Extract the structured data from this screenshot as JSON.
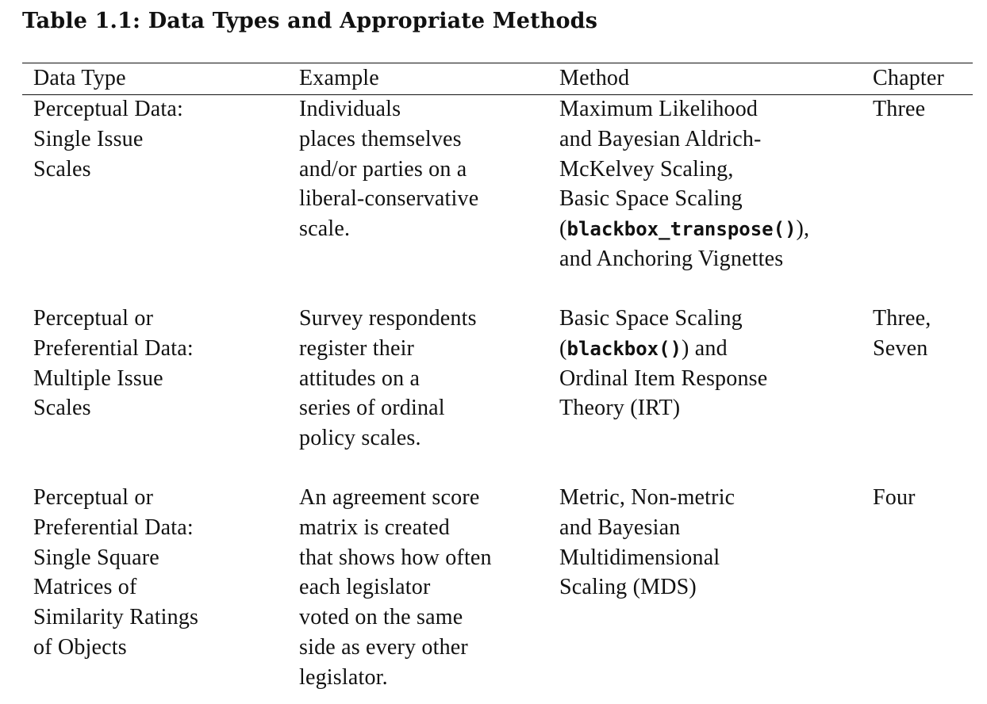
{
  "caption": "Table 1.1: Data Types and Appropriate Methods",
  "headers": {
    "data_type": "Data Type",
    "example": "Example",
    "method": "Method",
    "chapter": "Chapter"
  },
  "rows": [
    {
      "data_type": [
        "Perceptual Data:",
        "Single Issue",
        "Scales"
      ],
      "example": [
        "Individuals",
        "places themselves",
        "and/or parties on a",
        "liberal-conservative",
        "scale."
      ],
      "method": {
        "l1": "Maximum Likelihood",
        "l2": "and Bayesian Aldrich-",
        "l3": "McKelvey Scaling,",
        "l4": "Basic Space Scaling",
        "l5_open": "(",
        "l5_code": "blackbox_transpose()",
        "l5_close": "),",
        "l6": "and Anchoring Vignettes"
      },
      "chapter": [
        "Three"
      ]
    },
    {
      "data_type": [
        "Perceptual or",
        "Preferential Data:",
        "Multiple Issue",
        "Scales"
      ],
      "example": [
        "Survey respondents",
        "register their",
        "attitudes on a",
        "series of ordinal",
        "policy scales."
      ],
      "method": {
        "l1": "Basic Space Scaling",
        "l2_open": "(",
        "l2_code": "blackbox()",
        "l2_close": ") and",
        "l3": "Ordinal Item Response",
        "l4": "Theory (IRT)"
      },
      "chapter": [
        "Three,",
        "Seven"
      ]
    },
    {
      "data_type": [
        "Perceptual or",
        "Preferential Data:",
        "Single Square",
        "Matrices of",
        "Similarity Ratings",
        "of Objects"
      ],
      "example": [
        "An agreement score",
        "matrix is created",
        "that shows how often",
        "each legislator",
        "voted on the same",
        "side as every other",
        "legislator."
      ],
      "method": [
        "Metric, Non-metric",
        "and Bayesian",
        "Multidimensional",
        "Scaling (MDS)"
      ],
      "chapter": [
        "Four"
      ]
    }
  ]
}
